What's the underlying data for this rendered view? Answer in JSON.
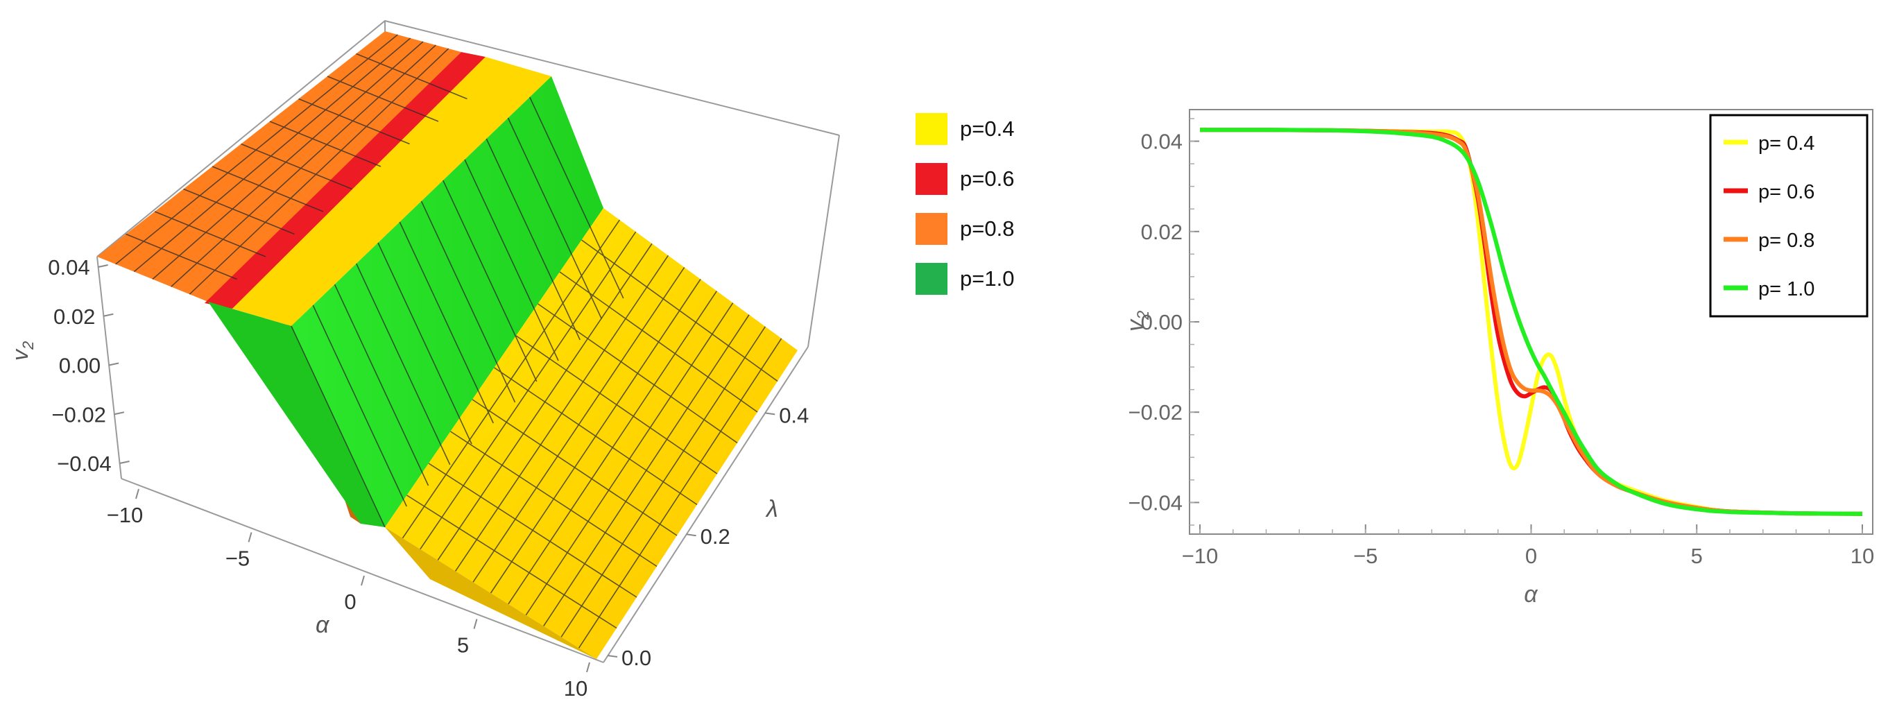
{
  "chart_data": [
    {
      "type": "surface3d",
      "xlabel": "α",
      "ylabel": "λ",
      "zlabel": "v2",
      "zlabel_main": "v",
      "zlabel_sub": "2",
      "x_ticks": [
        "−10",
        "−5",
        "0",
        "5",
        "10"
      ],
      "x_tick_values": [
        -10,
        -5,
        0,
        5,
        10
      ],
      "y_ticks": [
        "0.0",
        "0.2",
        "0.4"
      ],
      "y_tick_values": [
        0.0,
        0.2,
        0.4
      ],
      "z_ticks": [
        "0.04",
        "0.02",
        "0.00",
        "−0.02",
        "−0.04"
      ],
      "z_tick_values": [
        0.04,
        0.02,
        0.0,
        -0.02,
        -0.04
      ],
      "xlim": [
        -10,
        10
      ],
      "ylim": [
        0,
        0.5
      ],
      "zlim": [
        -0.05,
        0.05
      ],
      "series": [
        {
          "name": "p=0.4",
          "color": "#FFF200"
        },
        {
          "name": "p=0.6",
          "color": "#ED1C24"
        },
        {
          "name": "p=0.8",
          "color": "#FF7F27"
        },
        {
          "name": "p=1.0",
          "color": "#22B14C"
        }
      ],
      "surface_colors": {
        "orange_plateau": "#FF7F1E",
        "red_band": "#ED1C24",
        "green_slope": "#22EE22",
        "yellow_floor": "#FFD000"
      }
    },
    {
      "type": "line",
      "xlabel": "α",
      "ylabel": "v2",
      "ylabel_main": "v",
      "ylabel_sub": "2",
      "xlim": [
        -10,
        10
      ],
      "ylim": [
        -0.047,
        0.047
      ],
      "x_ticks": [
        "−10",
        "−5",
        "0",
        "5",
        "10"
      ],
      "x_tick_values": [
        -10,
        -5,
        0,
        5,
        10
      ],
      "y_ticks": [
        "0.04",
        "0.02",
        "0.00",
        "−0.02",
        "−0.04"
      ],
      "y_tick_values": [
        0.04,
        0.02,
        0.0,
        -0.02,
        -0.04
      ],
      "legend_position": "top-right",
      "grid": false,
      "x": [
        -10,
        -8,
        -6,
        -5,
        -4,
        -3,
        -2.5,
        -2.2,
        -2,
        -1.8,
        -1.6,
        -1.4,
        -1.2,
        -1,
        -0.8,
        -0.6,
        -0.4,
        -0.2,
        0,
        0.2,
        0.4,
        0.6,
        0.8,
        1,
        1.2,
        1.5,
        2,
        2.5,
        3,
        4,
        5,
        6,
        8,
        10
      ],
      "series": [
        {
          "name": "p= 0.4",
          "color": "#FFFF1A",
          "values": [
            0.0425,
            0.0425,
            0.0424,
            0.0423,
            0.0422,
            0.0421,
            0.0421,
            0.0415,
            0.039,
            0.033,
            0.022,
            0.008,
            -0.006,
            -0.018,
            -0.027,
            -0.032,
            -0.0315,
            -0.026,
            -0.019,
            -0.012,
            -0.008,
            -0.0075,
            -0.011,
            -0.017,
            -0.022,
            -0.0275,
            -0.033,
            -0.0355,
            -0.037,
            -0.0395,
            -0.041,
            -0.042,
            -0.0424,
            -0.0425
          ]
        },
        {
          "name": "p= 0.6",
          "color": "#EE1111",
          "values": [
            0.0425,
            0.0425,
            0.0424,
            0.0423,
            0.0421,
            0.0418,
            0.0412,
            0.0402,
            0.039,
            0.034,
            0.027,
            0.017,
            0.006,
            -0.003,
            -0.009,
            -0.0135,
            -0.0158,
            -0.0165,
            -0.0158,
            -0.015,
            -0.0145,
            -0.0152,
            -0.018,
            -0.0215,
            -0.025,
            -0.029,
            -0.0335,
            -0.036,
            -0.0375,
            -0.0398,
            -0.0412,
            -0.042,
            -0.0424,
            -0.0425
          ]
        },
        {
          "name": "p= 0.8",
          "color": "#FF7F1E",
          "values": [
            0.0425,
            0.0425,
            0.0424,
            0.0423,
            0.0421,
            0.0416,
            0.041,
            0.04,
            0.0385,
            0.034,
            0.028,
            0.019,
            0.0095,
            0.001,
            -0.006,
            -0.011,
            -0.0135,
            -0.0148,
            -0.0152,
            -0.0152,
            -0.0155,
            -0.0165,
            -0.0185,
            -0.0215,
            -0.0245,
            -0.0285,
            -0.0335,
            -0.036,
            -0.0375,
            -0.0398,
            -0.0412,
            -0.042,
            -0.0424,
            -0.0425
          ]
        },
        {
          "name": "p= 1.0",
          "color": "#22EE22",
          "values": [
            0.0425,
            0.0425,
            0.0424,
            0.0422,
            0.0418,
            0.041,
            0.0398,
            0.0385,
            0.037,
            0.0345,
            0.031,
            0.0265,
            0.0215,
            0.016,
            0.0105,
            0.0055,
            0.001,
            -0.003,
            -0.0065,
            -0.0095,
            -0.012,
            -0.0148,
            -0.0175,
            -0.0202,
            -0.023,
            -0.027,
            -0.0325,
            -0.0355,
            -0.0375,
            -0.0402,
            -0.0415,
            -0.0421,
            -0.0424,
            -0.0425
          ]
        }
      ]
    }
  ]
}
